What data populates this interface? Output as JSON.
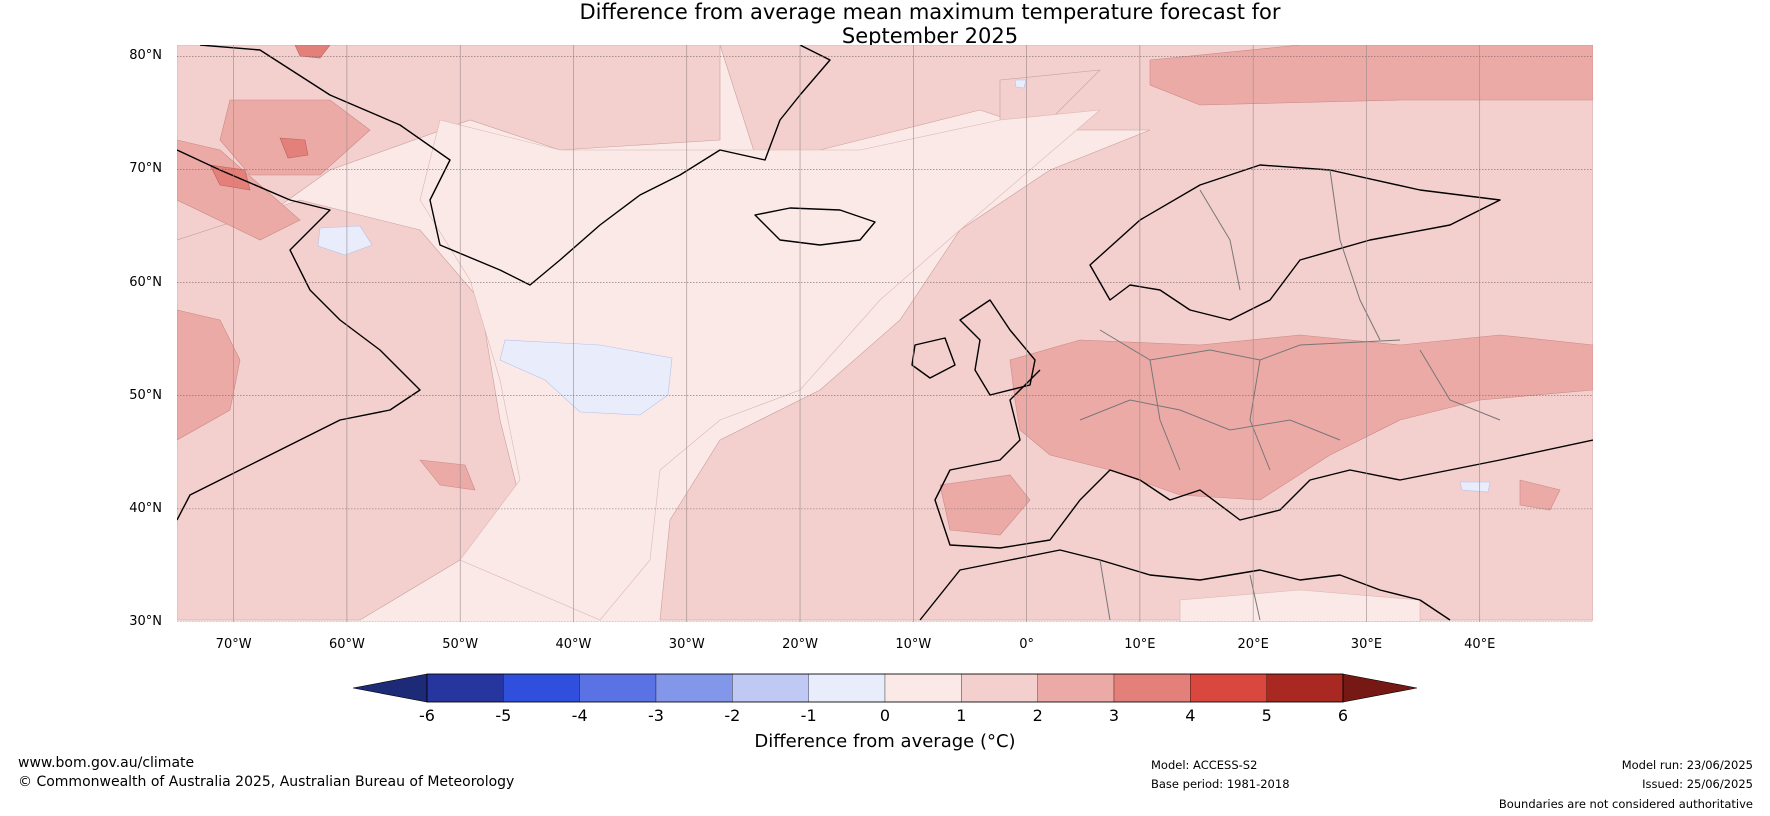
{
  "title": {
    "line1": "Difference from average mean maximum temperature forecast for",
    "line2": "September 2025"
  },
  "map": {
    "lon_range": [
      -75,
      50
    ],
    "lat_range": [
      30,
      81
    ],
    "lat_ticks": [
      {
        "value": 80,
        "label": "80°N"
      },
      {
        "value": 70,
        "label": "70°N"
      },
      {
        "value": 60,
        "label": "60°N"
      },
      {
        "value": 50,
        "label": "50°N"
      },
      {
        "value": 40,
        "label": "40°N"
      },
      {
        "value": 30,
        "label": "30°N"
      }
    ],
    "lon_ticks": [
      {
        "value": -70,
        "label": "70°W"
      },
      {
        "value": -60,
        "label": "60°W"
      },
      {
        "value": -50,
        "label": "50°W"
      },
      {
        "value": -40,
        "label": "40°W"
      },
      {
        "value": -30,
        "label": "30°W"
      },
      {
        "value": -20,
        "label": "20°W"
      },
      {
        "value": -10,
        "label": "10°W"
      },
      {
        "value": 0,
        "label": "0°"
      },
      {
        "value": 10,
        "label": "10°E"
      },
      {
        "value": 20,
        "label": "20°E"
      },
      {
        "value": 30,
        "label": "30°E"
      },
      {
        "value": 40,
        "label": "40°E"
      }
    ],
    "gridlines": true,
    "background_color": "#fbe9e7"
  },
  "colorbar": {
    "ticks": [
      "-6",
      "-5",
      "-4",
      "-3",
      "-2",
      "-1",
      "0",
      "1",
      "2",
      "3",
      "4",
      "5",
      "6"
    ],
    "colors": [
      "#27369f",
      "#2f4fdc",
      "#5a72e4",
      "#8397ea",
      "#bfc9f3",
      "#e8ecfb",
      "#fbe9e7",
      "#f3cfcd",
      "#ecaaa7",
      "#e4807a",
      "#d9473e",
      "#a92822"
    ],
    "under_color": "#1c2a78",
    "over_color": "#761915",
    "label": "Difference from average (°C)"
  },
  "footer": {
    "website": "www.bom.gov.au/climate",
    "copyright": "© Commonwealth of Australia 2025, Australian Bureau of Meteorology",
    "model": "Model: ACCESS-S2",
    "base_period": "Base period: 1981-2018",
    "model_run": "Model run: 23/06/2025",
    "issued": "Issued: 25/06/2025",
    "disclaimer": "Boundaries are not considered authoritative"
  }
}
